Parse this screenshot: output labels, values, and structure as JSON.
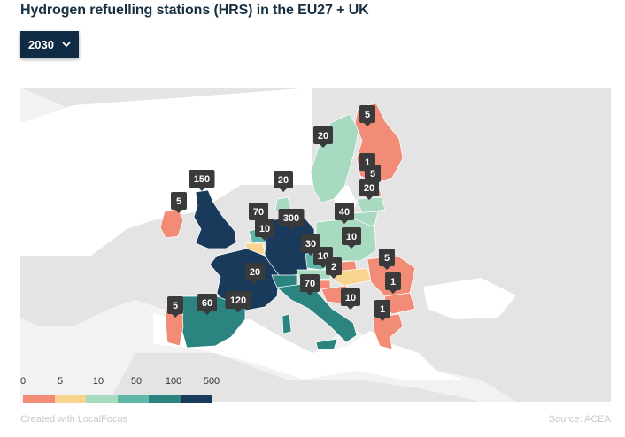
{
  "title": "Hydrogen refuelling stations (HRS) in the EU27 + UK",
  "year_select": {
    "value": "2030",
    "icon": "chevron-down-icon"
  },
  "legend": {
    "ticks": [
      "0",
      "5",
      "10",
      "50",
      "100",
      "500"
    ],
    "colors": [
      "#f28c77",
      "#f7d591",
      "#a8d9c1",
      "#5fb8a8",
      "#2b8480",
      "#1a3a5c"
    ]
  },
  "colors": {
    "background_land": "#e6e6e6",
    "sea": "#ffffff",
    "pin": "#3a3a3a",
    "button": "#102c44"
  },
  "stations": [
    {
      "country": "Finland (north)",
      "value": "5"
    },
    {
      "country": "Sweden",
      "value": "20"
    },
    {
      "country": "Finland (south)",
      "value": "1"
    },
    {
      "country": "Estonia",
      "value": "5"
    },
    {
      "country": "Latvia",
      "value": "20"
    },
    {
      "country": "Denmark",
      "value": "20"
    },
    {
      "country": "United Kingdom",
      "value": "150"
    },
    {
      "country": "Ireland",
      "value": "5"
    },
    {
      "country": "Netherlands",
      "value": "70"
    },
    {
      "country": "Germany",
      "value": "300"
    },
    {
      "country": "Belgium",
      "value": "10"
    },
    {
      "country": "Poland",
      "value": "40"
    },
    {
      "country": "Lithuania",
      "value": "10"
    },
    {
      "country": "Czechia",
      "value": "30"
    },
    {
      "country": "Austria",
      "value": "10"
    },
    {
      "country": "Slovakia",
      "value": "2"
    },
    {
      "country": "Romania",
      "value": "5"
    },
    {
      "country": "Hungary",
      "value": "1"
    },
    {
      "country": "France",
      "value": "20"
    },
    {
      "country": "Switzerland",
      "value": "70"
    },
    {
      "country": "Croatia",
      "value": "10"
    },
    {
      "country": "Bulgaria",
      "value": "1"
    },
    {
      "country": "Portugal",
      "value": "5"
    },
    {
      "country": "Spain",
      "value": "60"
    },
    {
      "country": "Italy",
      "value": "120"
    }
  ],
  "footer": {
    "credit": "Created with LocalFocus",
    "source": "Source: ACEA"
  }
}
